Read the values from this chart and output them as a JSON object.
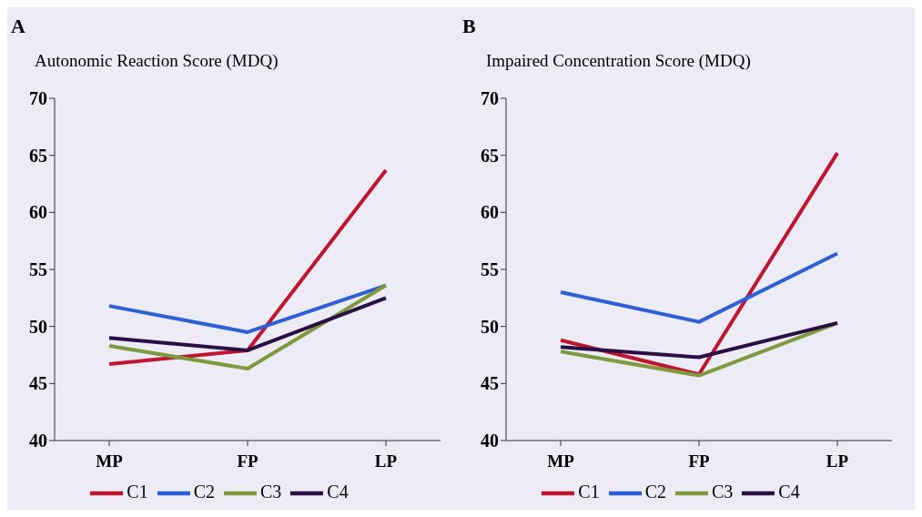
{
  "chart_data": [
    {
      "type": "line",
      "title": "A",
      "ylabel": "Autonomic Reaction Score (MDQ)",
      "categories": [
        "MP",
        "FP",
        "LP"
      ],
      "series": [
        {
          "name": "C1",
          "color": "#c0152f",
          "values": [
            46.7,
            47.9,
            63.7
          ]
        },
        {
          "name": "C2",
          "color": "#2d5fd6",
          "values": [
            51.8,
            49.5,
            53.6
          ]
        },
        {
          "name": "C3",
          "color": "#7f9a3c",
          "values": [
            48.3,
            46.3,
            53.6
          ]
        },
        {
          "name": "C4",
          "color": "#2a0f45",
          "values": [
            49.0,
            47.9,
            52.5
          ]
        }
      ],
      "ylim": [
        40,
        70
      ],
      "yticks": [
        40,
        45,
        50,
        55,
        60,
        65,
        70
      ],
      "grid": false,
      "legend": "bottom",
      "marker": "none",
      "line_style": "solid"
    },
    {
      "type": "line",
      "title": "B",
      "ylabel": "Impaired Concentration Score (MDQ)",
      "categories": [
        "MP",
        "FP",
        "LP"
      ],
      "series": [
        {
          "name": "C1",
          "color": "#c0152f",
          "values": [
            48.8,
            45.8,
            65.2
          ]
        },
        {
          "name": "C2",
          "color": "#2d5fd6",
          "values": [
            53.0,
            50.4,
            56.4
          ]
        },
        {
          "name": "C3",
          "color": "#7f9a3c",
          "values": [
            47.8,
            45.7,
            50.3
          ]
        },
        {
          "name": "C4",
          "color": "#2a0f45",
          "values": [
            48.2,
            47.3,
            50.3
          ]
        }
      ],
      "ylim": [
        40,
        70
      ],
      "yticks": [
        40,
        45,
        50,
        55,
        60,
        65,
        70
      ],
      "grid": false,
      "legend": "bottom",
      "marker": "none",
      "line_style": "solid"
    }
  ]
}
